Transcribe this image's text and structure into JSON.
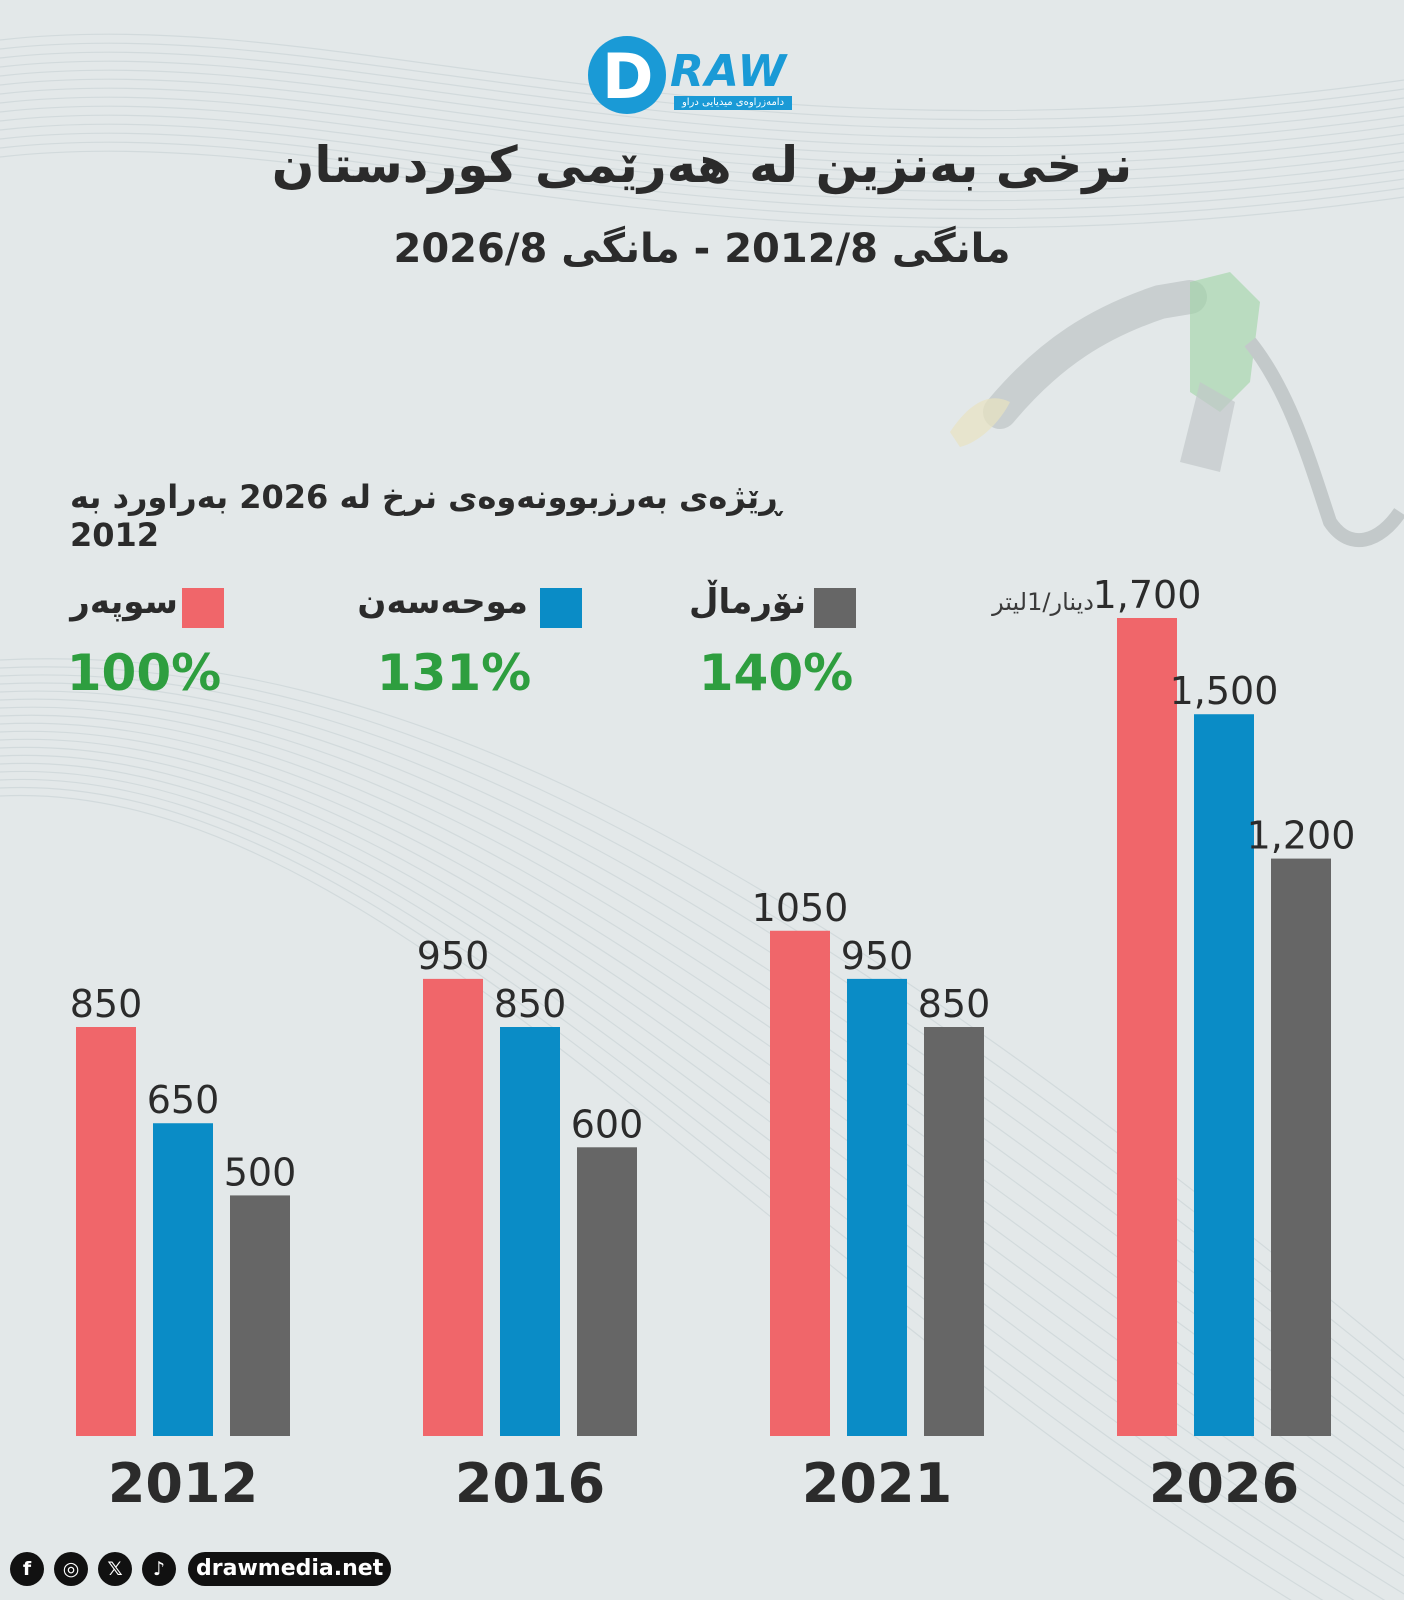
{
  "logo": {
    "word": "RAW",
    "letter": "D",
    "tagline": "دامەزراوەی میدیایی دراو"
  },
  "title": "نرخی بەنزین لە هەرێمی کوردستان",
  "subtitle": "مانگی 2012/8 - مانگی 2026/8",
  "increase": {
    "title": "ڕێژەی بەرزبوونەوەی نرخ لە 2026 بەراورد بە 2012",
    "items": [
      {
        "name": "سوپەر",
        "percent": "100%",
        "color": "#f0666a"
      },
      {
        "name": "موحەسەن",
        "percent": "131%",
        "color": "#0a8cc6"
      },
      {
        "name": "نۆرماڵ",
        "percent": "140%",
        "color": "#666666"
      }
    ]
  },
  "unit_label": "دینار/1لیتر",
  "chart_data": {
    "type": "bar",
    "categories": [
      "2012",
      "2016",
      "2021",
      "2026"
    ],
    "series": [
      {
        "name": "سوپەر",
        "color": "#f0666a",
        "values": [
          850,
          950,
          1050,
          1700
        ],
        "labels": [
          "850",
          "950",
          "1050",
          "1,700"
        ]
      },
      {
        "name": "موحەسەن",
        "color": "#0a8cc6",
        "values": [
          650,
          850,
          950,
          1500
        ],
        "labels": [
          "650",
          "850",
          "950",
          "1,500"
        ]
      },
      {
        "name": "نۆرماڵ",
        "color": "#666666",
        "values": [
          500,
          600,
          850,
          1200
        ],
        "labels": [
          "500",
          "600",
          "850",
          "1,200"
        ]
      }
    ],
    "ylim": [
      0,
      1700
    ],
    "grid": false,
    "legend": "top"
  },
  "footer": {
    "icons": [
      "facebook-icon",
      "instagram-icon",
      "x-icon",
      "tiktok-icon"
    ],
    "icon_glyphs": [
      "f",
      "◎",
      "𝕏",
      "♪"
    ],
    "site": "drawmedia.net"
  }
}
